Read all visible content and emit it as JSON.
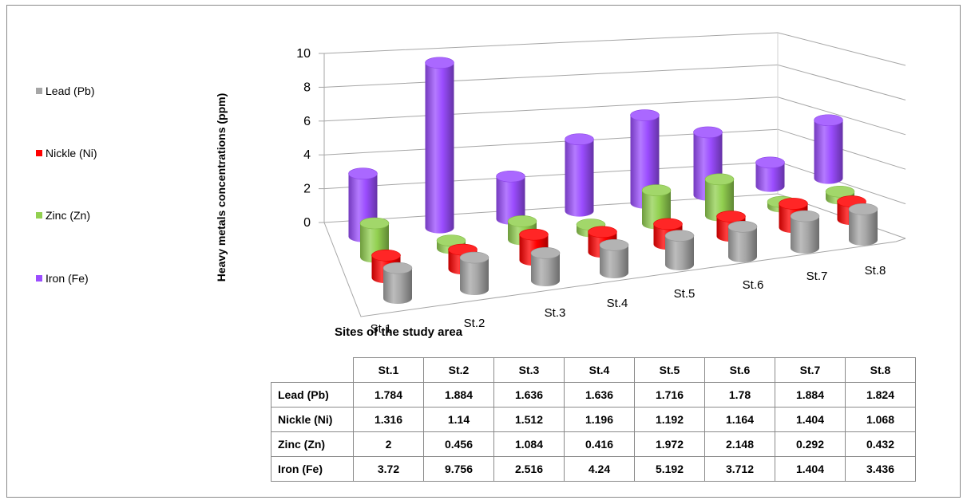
{
  "chart_data": {
    "type": "bar",
    "ylabel": "Heavy metals concentrations (ppm)",
    "xlabel": "Sites of the study area",
    "ylim": [
      0,
      10
    ],
    "yticks": [
      "10",
      "8",
      "6",
      "4",
      "2",
      "0"
    ],
    "categories": [
      "St.1",
      "St.2",
      "St.3",
      "St.4",
      "St.5",
      "St.6",
      "St.7",
      "St.8"
    ],
    "legend_position": "left",
    "series": [
      {
        "name": "Lead (Pb)",
        "color": "#a6a6a6",
        "values": [
          1.784,
          1.884,
          1.636,
          1.636,
          1.716,
          1.78,
          1.884,
          1.824
        ]
      },
      {
        "name": "Nickle (Ni)",
        "color": "#ff0000",
        "values": [
          1.316,
          1.14,
          1.512,
          1.196,
          1.192,
          1.164,
          1.404,
          1.068
        ]
      },
      {
        "name": "Zinc (Zn)",
        "color": "#92d050",
        "values": [
          2,
          0.456,
          1.084,
          0.416,
          1.972,
          2.148,
          0.292,
          0.432
        ]
      },
      {
        "name": "Iron (Fe)",
        "color": "#9b4dff",
        "values": [
          3.72,
          9.756,
          2.516,
          4.24,
          5.192,
          3.712,
          1.404,
          3.436
        ]
      }
    ],
    "table": {
      "header": [
        "St.1",
        "St.2",
        "St.3",
        "St.4",
        "St.5",
        "St.6",
        "St.7",
        "St.8"
      ],
      "rows": [
        {
          "label": "Lead (Pb)",
          "cells": [
            "1.784",
            "1.884",
            "1.636",
            "1.636",
            "1.716",
            "1.78",
            "1.884",
            "1.824"
          ]
        },
        {
          "label": "Nickle (Ni)",
          "cells": [
            "1.316",
            "1.14",
            "1.512",
            "1.196",
            "1.192",
            "1.164",
            "1.404",
            "1.068"
          ]
        },
        {
          "label": "Zinc (Zn)",
          "cells": [
            "2",
            "0.456",
            "1.084",
            "0.416",
            "1.972",
            "2.148",
            "0.292",
            "0.432"
          ]
        },
        {
          "label": "Iron (Fe)",
          "cells": [
            "3.72",
            "9.756",
            "2.516",
            "4.24",
            "5.192",
            "3.712",
            "1.404",
            "3.436"
          ]
        }
      ]
    }
  }
}
